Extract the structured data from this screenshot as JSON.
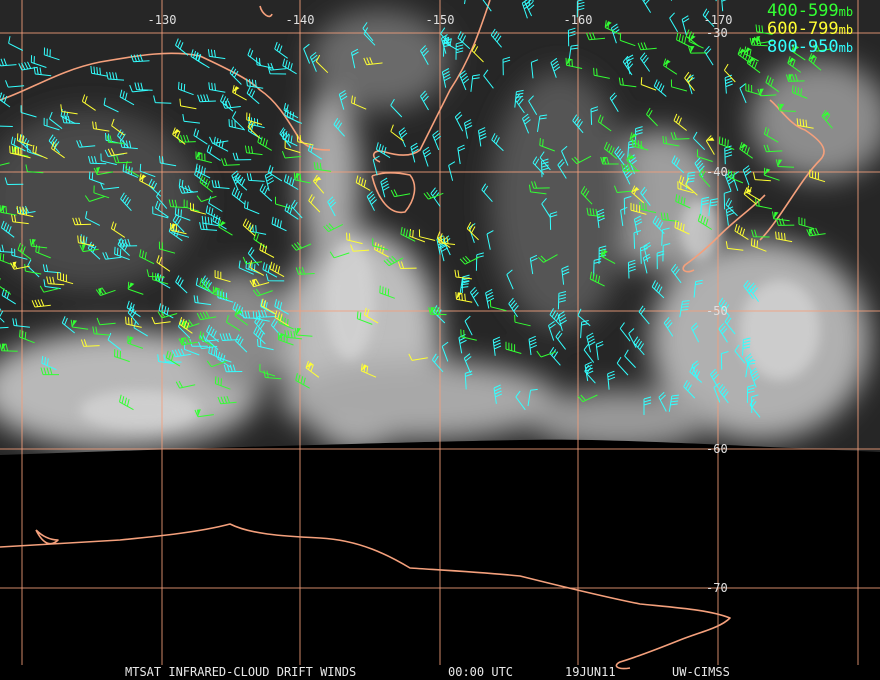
{
  "map": {
    "longitude_labels": [
      "-130",
      "-140",
      "-150",
      "-160",
      "-170"
    ],
    "latitude_labels": [
      "-30",
      "-40",
      "-50",
      "-60",
      "-70"
    ],
    "legend": [
      {
        "label": "400-599",
        "unit": "mb",
        "color": "#33ff33"
      },
      {
        "label": "600-799",
        "unit": "mb",
        "color": "#ffff33"
      },
      {
        "label": "800-950",
        "unit": "mb",
        "color": "#33ffff"
      }
    ],
    "footer": {
      "title": "MTSAT INFRARED-CLOUD DRIFT WINDS",
      "time": "00:00 UTC",
      "date": "19JUN11",
      "source": "UW-CIMSS"
    }
  }
}
